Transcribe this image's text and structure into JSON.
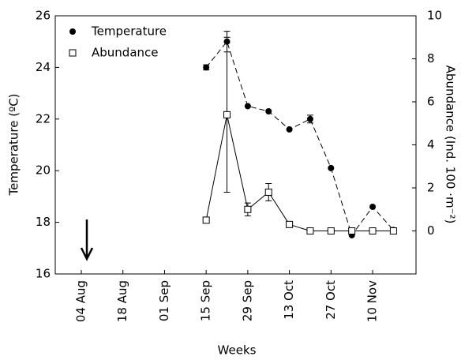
{
  "chart_data": {
    "type": "line",
    "categories": [
      "04 Aug",
      null,
      "18 Aug",
      null,
      "01 Sep",
      null,
      "15 Sep",
      null,
      "29 Sep",
      null,
      "13 Oct",
      null,
      "27 Oct",
      null,
      "10 Nov",
      null
    ],
    "x_label": "Weeks",
    "y_label": "Temperature (ºC)",
    "y2_label": "Abundance (Ind. 100 ·m⁻²)",
    "ylim": [
      16,
      26
    ],
    "yticks": [
      16,
      18,
      20,
      22,
      24,
      26
    ],
    "y2lim": [
      -2,
      10
    ],
    "y2ticks": [
      0,
      2,
      4,
      6,
      8,
      10
    ],
    "legend": "upper left",
    "series": [
      {
        "name": "Temperature",
        "color": "#000000",
        "marker": "filled-circle",
        "dash": "dashed",
        "values": [
          null,
          null,
          null,
          null,
          null,
          null,
          24.0,
          25.0,
          22.5,
          22.3,
          21.6,
          22.0,
          20.1,
          17.5,
          18.6,
          17.7
        ],
        "errors": [
          null,
          null,
          null,
          null,
          null,
          null,
          0.1,
          0.4,
          null,
          null,
          null,
          0.15,
          null,
          null,
          null,
          null
        ]
      },
      {
        "name": "Abundance",
        "color": "#000000",
        "marker": "open-square",
        "axis": "y2",
        "values": [
          null,
          null,
          null,
          null,
          null,
          null,
          0.5,
          5.4,
          1.0,
          1.8,
          0.3,
          0,
          0,
          0,
          0,
          0
        ],
        "errors": [
          null,
          null,
          null,
          null,
          null,
          null,
          null,
          3.6,
          0.3,
          0.4,
          null,
          null,
          null,
          null,
          null,
          null
        ]
      }
    ]
  }
}
